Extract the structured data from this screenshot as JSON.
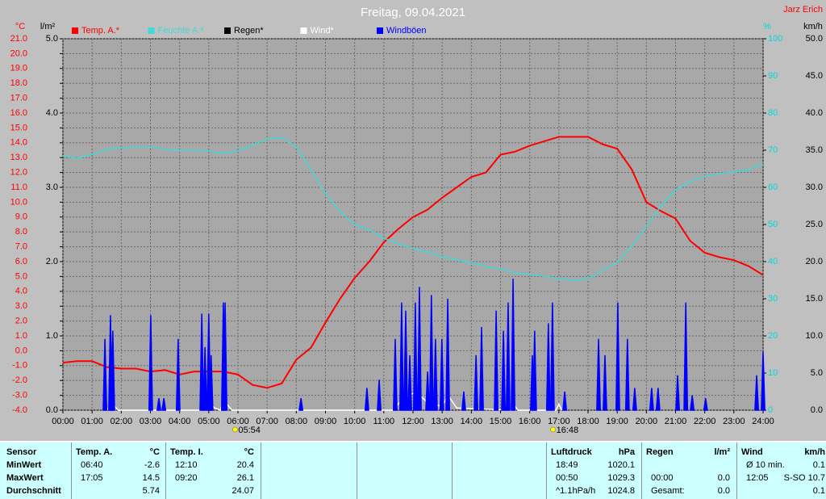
{
  "chart_data": {
    "type": "line",
    "title": "Freitag, 09.04.2021",
    "author": "Jarz Erich",
    "grid": true,
    "xlim": [
      0,
      24
    ],
    "xticks": [
      {
        "value": 0,
        "label": "00:00"
      },
      {
        "value": 1,
        "label": "01:00"
      },
      {
        "value": 2,
        "label": "02:00"
      },
      {
        "value": 3,
        "label": "03:00"
      },
      {
        "value": 4,
        "label": "04:00"
      },
      {
        "value": 5,
        "label": "05:00"
      },
      {
        "value": 6,
        "label": "06:00"
      },
      {
        "value": 7,
        "label": "07:00"
      },
      {
        "value": 8,
        "label": "08:00"
      },
      {
        "value": 9,
        "label": "09:00"
      },
      {
        "value": 10,
        "label": "10:00"
      },
      {
        "value": 11,
        "label": "11:00"
      },
      {
        "value": 12,
        "label": "12:00"
      },
      {
        "value": 13,
        "label": "13:00"
      },
      {
        "value": 14,
        "label": "14:00"
      },
      {
        "value": 15,
        "label": "15:00"
      },
      {
        "value": 16,
        "label": "16:00"
      },
      {
        "value": 17,
        "label": "17:00"
      },
      {
        "value": 18,
        "label": "18:00"
      },
      {
        "value": 19,
        "label": "19:00"
      },
      {
        "value": 20,
        "label": "20:00"
      },
      {
        "value": 21,
        "label": "21:00"
      },
      {
        "value": 22,
        "label": "22:00"
      },
      {
        "value": 23,
        "label": "23:00"
      },
      {
        "value": 24,
        "label": "24:00"
      }
    ],
    "y_axes": [
      {
        "label": "°C",
        "color": "#ff0000",
        "lim": [
          -4,
          21
        ],
        "ticks": [
          {
            "value": -4,
            "label": "-4.0"
          },
          {
            "value": -3,
            "label": "-3.0"
          },
          {
            "value": -2,
            "label": "-2.0"
          },
          {
            "value": -1,
            "label": "-1.0"
          },
          {
            "value": 0,
            "label": "0.0"
          },
          {
            "value": 1,
            "label": "1.0"
          },
          {
            "value": 2,
            "label": "2.0"
          },
          {
            "value": 3,
            "label": "3.0"
          },
          {
            "value": 4,
            "label": "4.0"
          },
          {
            "value": 5,
            "label": "5.0"
          },
          {
            "value": 6,
            "label": "6.0"
          },
          {
            "value": 7,
            "label": "7.0"
          },
          {
            "value": 8,
            "label": "8.0"
          },
          {
            "value": 9,
            "label": "9.0"
          },
          {
            "value": 10,
            "label": "10.0"
          },
          {
            "value": 11,
            "label": "11.0"
          },
          {
            "value": 12,
            "label": "12.0"
          },
          {
            "value": 13,
            "label": "13.0"
          },
          {
            "value": 14,
            "label": "14.0"
          },
          {
            "value": 15,
            "label": "15.0"
          },
          {
            "value": 16,
            "label": "16.0"
          },
          {
            "value": 17,
            "label": "17.0"
          },
          {
            "value": 18,
            "label": "18.0"
          },
          {
            "value": 19,
            "label": "19.0"
          },
          {
            "value": 20,
            "label": "20.0"
          },
          {
            "value": 21,
            "label": "21.0"
          }
        ]
      },
      {
        "label": "l/m²",
        "color": "#000000",
        "lim": [
          0,
          5
        ],
        "ticks": [
          {
            "value": 0,
            "label": "0.0"
          },
          {
            "value": 1,
            "label": "1.0"
          },
          {
            "value": 2,
            "label": "2.0"
          },
          {
            "value": 3,
            "label": "3.0"
          },
          {
            "value": 4,
            "label": "4.0"
          },
          {
            "value": 5,
            "label": "5.0"
          }
        ]
      },
      {
        "label": "%",
        "color": "#00d8d8",
        "lim": [
          0,
          100
        ],
        "ticks": [
          0,
          10,
          20,
          30,
          40,
          50,
          60,
          70,
          80,
          90,
          100
        ]
      },
      {
        "label": "km/h",
        "color": "#000000",
        "lim": [
          0,
          50
        ],
        "ticks": [
          {
            "value": 0,
            "label": "0.0"
          },
          {
            "value": 5,
            "label": "5.0"
          },
          {
            "value": 10,
            "label": "10.0"
          },
          {
            "value": 15,
            "label": "15.0"
          },
          {
            "value": 20,
            "label": "20.0"
          },
          {
            "value": 25,
            "label": "25.0"
          },
          {
            "value": 30,
            "label": "30.0"
          },
          {
            "value": 35,
            "label": "35.0"
          },
          {
            "value": 40,
            "label": "40.0"
          },
          {
            "value": 45,
            "label": "45.0"
          },
          {
            "value": 50,
            "label": "50.0"
          }
        ]
      }
    ],
    "x": [
      0,
      0.5,
      1,
      1.5,
      2,
      2.5,
      3,
      3.5,
      4,
      4.5,
      5,
      5.5,
      6,
      6.5,
      7,
      7.5,
      8,
      8.5,
      9,
      9.5,
      10,
      10.5,
      11,
      11.5,
      12,
      12.5,
      13,
      13.5,
      14,
      14.5,
      15,
      15.5,
      16,
      16.5,
      17,
      17.5,
      18,
      18.5,
      19,
      19.5,
      20,
      20.5,
      21,
      21.5,
      22,
      22.5,
      23,
      23.5,
      24
    ],
    "series": [
      {
        "name": "Temp. A.*",
        "color": "#ff0000",
        "axis": 0,
        "style": "line",
        "values": [
          -0.8,
          -0.7,
          -0.7,
          -1.1,
          -1.2,
          -1.2,
          -1.4,
          -1.3,
          -1.6,
          -1.4,
          -1.4,
          -1.4,
          -1.6,
          -2.3,
          -2.5,
          -2.2,
          -0.6,
          0.2,
          1.9,
          3.5,
          4.9,
          6.0,
          7.3,
          8.2,
          9.0,
          9.5,
          10.3,
          11.0,
          11.7,
          12.0,
          13.2,
          13.4,
          13.8,
          14.1,
          14.4,
          14.4,
          14.4,
          13.9,
          13.6,
          12.2,
          10.0,
          9.4,
          8.9,
          7.4,
          6.6,
          6.3,
          6.1,
          5.7,
          5.1
        ]
      },
      {
        "name": "Feuchte A.*",
        "color": "#40d8d8",
        "axis": 2,
        "style": "line",
        "values": [
          68.5,
          67.8,
          68.9,
          70.2,
          70.7,
          70.9,
          70.9,
          70.2,
          70.0,
          70.0,
          69.8,
          69.1,
          69.8,
          71.3,
          73.0,
          73.5,
          70.9,
          64.8,
          58.3,
          53.5,
          50.0,
          48.5,
          46.3,
          44.8,
          43.5,
          42.6,
          41.3,
          40.4,
          39.8,
          38.7,
          38.0,
          37.0,
          36.5,
          36.1,
          35.4,
          35.0,
          35.4,
          37.6,
          39.8,
          44.1,
          49.6,
          55.0,
          59.3,
          61.5,
          63.0,
          63.7,
          64.1,
          64.8,
          66.3
        ]
      },
      {
        "name": "Regen*",
        "color": "#000000",
        "axis": 1,
        "style": "line",
        "x": [],
        "values": []
      },
      {
        "name": "Wind*",
        "color": "#ffffff",
        "axis": 3,
        "style": "line",
        "x": [
          1.5,
          1.7,
          1.9,
          4.9,
          5.0,
          5.2,
          5.4,
          5.5,
          5.8,
          11.3,
          11.6,
          12.1,
          12.5,
          13.0,
          13.2,
          13.5,
          15.4,
          15.5,
          15.6,
          16.9,
          17.0,
          17.1
        ],
        "values": [
          0,
          0.8,
          0,
          0,
          1.0,
          0.3,
          0,
          1.3,
          0,
          0,
          1.3,
          2.5,
          1.0,
          0.5,
          2.0,
          0.3,
          0,
          0.5,
          0,
          0,
          0.8,
          0
        ]
      },
      {
        "name": "Windböen",
        "color": "#0000ff",
        "axis": 3,
        "style": "spikes",
        "x": [
          1.44,
          1.63,
          1.71,
          3.01,
          3.29,
          3.46,
          3.95,
          4.76,
          4.87,
          5.0,
          5.08,
          5.5,
          5.56,
          8.16,
          10.42,
          10.84,
          11.39,
          11.61,
          11.75,
          11.89,
          12.08,
          12.22,
          12.5,
          12.63,
          12.77,
          12.99,
          13.19,
          13.74,
          14.16,
          14.35,
          14.85,
          15.1,
          15.26,
          15.43,
          16.09,
          16.17,
          16.64,
          16.78,
          17.2,
          18.36,
          18.58,
          19.02,
          19.35,
          19.6,
          20.18,
          20.4,
          21.07,
          21.35,
          21.57,
          22.03,
          23.78,
          24.0
        ],
        "values": [
          9.6,
          12.8,
          10.7,
          12.8,
          1.6,
          1.6,
          9.6,
          13.0,
          8.5,
          13.0,
          7.4,
          14.5,
          14.5,
          1.6,
          3.0,
          4.1,
          9.6,
          14.5,
          13.4,
          7.4,
          14.5,
          16.6,
          5.2,
          15.5,
          9.6,
          9.6,
          15.0,
          2.5,
          7.4,
          11.2,
          13.4,
          10.7,
          14.5,
          17.7,
          7.4,
          10.7,
          11.7,
          14.5,
          2.5,
          9.6,
          7.4,
          14.5,
          9.6,
          3.0,
          3.0,
          3.0,
          4.7,
          14.5,
          2.0,
          1.6,
          4.7,
          7.9
        ]
      }
    ],
    "annotations": [
      {
        "label": "05:54",
        "x": 5.9
      },
      {
        "label": "16:48",
        "x": 16.8
      }
    ]
  },
  "table": {
    "row_labels_header": "Sensor",
    "row_labels": [
      "MinWert",
      "MaxWert",
      "Durchschnitt"
    ],
    "groups": [
      {
        "title": "Temp. A.",
        "unit": "°C",
        "rows": [
          {
            "time": "06:40",
            "value": "-2.6"
          },
          {
            "time": "17:05",
            "value": "14.5"
          },
          {
            "value": "5.74"
          }
        ]
      },
      {
        "title": "Temp. I.",
        "unit": "°C",
        "rows": [
          {
            "time": "12:10",
            "value": "20.4"
          },
          {
            "time": "09:20",
            "value": "26.1"
          },
          {
            "value": "24.07"
          }
        ]
      },
      {
        "title": "Luftdruck",
        "unit": "hPa",
        "rows": [
          {
            "time": "18:49",
            "value": "1020.1"
          },
          {
            "time": "00:50",
            "value": "1029.3"
          },
          {
            "time": "^1.1hPa/h",
            "value": "1024.8"
          }
        ]
      },
      {
        "title": "Regen",
        "unit": "l/m²",
        "rows": [
          {},
          {
            "time": "00:00",
            "value": "0.0"
          },
          {
            "time": "Gesamt:",
            "value": "0.0"
          }
        ]
      },
      {
        "title": "Wind",
        "unit": "km/h",
        "rows": [
          {
            "time": "Ø 10 min.",
            "value": "0.1"
          },
          {
            "time": "12:05",
            "value": "S-SO 10.7"
          },
          {
            "value": "0.1"
          }
        ]
      }
    ]
  }
}
